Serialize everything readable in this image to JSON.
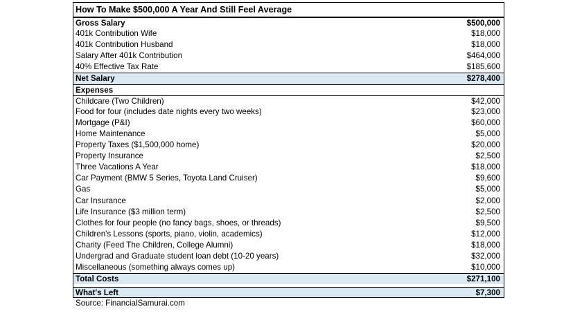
{
  "title": "How To Make $500,000 A Year And Still Feel Average",
  "income": [
    {
      "label": "Gross Salary",
      "value": "$500,000",
      "bold": true
    },
    {
      "label": "401k Contribution Wife",
      "value": "$18,000"
    },
    {
      "label": "401k Contribution Husband",
      "value": "$18,000"
    },
    {
      "label": "Salary After 401k Contribution",
      "value": "$464,000"
    },
    {
      "label": "40% Effective Tax Rate",
      "value": "$185,600"
    }
  ],
  "net_salary": {
    "label": "Net Salary",
    "value": "$278,400"
  },
  "expenses_header": "Expenses",
  "expenses": [
    {
      "label": "Childcare (Two Children)",
      "value": "$42,000"
    },
    {
      "label": "Food for four (includes date nights every two weeks)",
      "value": "$23,000"
    },
    {
      "label": "Mortgage (P&I)",
      "value": "$60,000"
    },
    {
      "label": "Home Maintenance",
      "value": "$5,000"
    },
    {
      "label": "Property Taxes ($1,500,000 home)",
      "value": "$20,000"
    },
    {
      "label": "Property Insurance",
      "value": "$2,500"
    },
    {
      "label": "Three Vacations A Year",
      "value": "$18,000"
    },
    {
      "label": "Car Payment (BMW 5 Series, Toyota Land Cruiser)",
      "value": "$9,600"
    },
    {
      "label": "Gas",
      "value": "$5,000"
    },
    {
      "label": "Car Insurance",
      "value": "$2,000"
    },
    {
      "label": "Life Insurance ($3 million term)",
      "value": "$2,500"
    },
    {
      "label": "Clothes for four people (no fancy bags, shoes, or threads)",
      "value": "$9,500"
    },
    {
      "label": "Children's Lessons (sports, piano, violin, academics)",
      "value": "$12,000"
    },
    {
      "label": "Charity (Feed The Children, College Alumni)",
      "value": "$18,000"
    },
    {
      "label": "Undergrad and Graduate student loan debt (10-20 years)",
      "value": "$32,000"
    },
    {
      "label": "Miscellaneous (something always comes up)",
      "value": "$10,000"
    }
  ],
  "total_costs": {
    "label": "Total Costs",
    "value": "$271,100"
  },
  "whats_left": {
    "label": "What's Left",
    "value": "$7,300"
  },
  "source": "Source: FinancialSamurai.com",
  "colors": {
    "highlight": "#dbe9f2",
    "border": "#000000"
  }
}
